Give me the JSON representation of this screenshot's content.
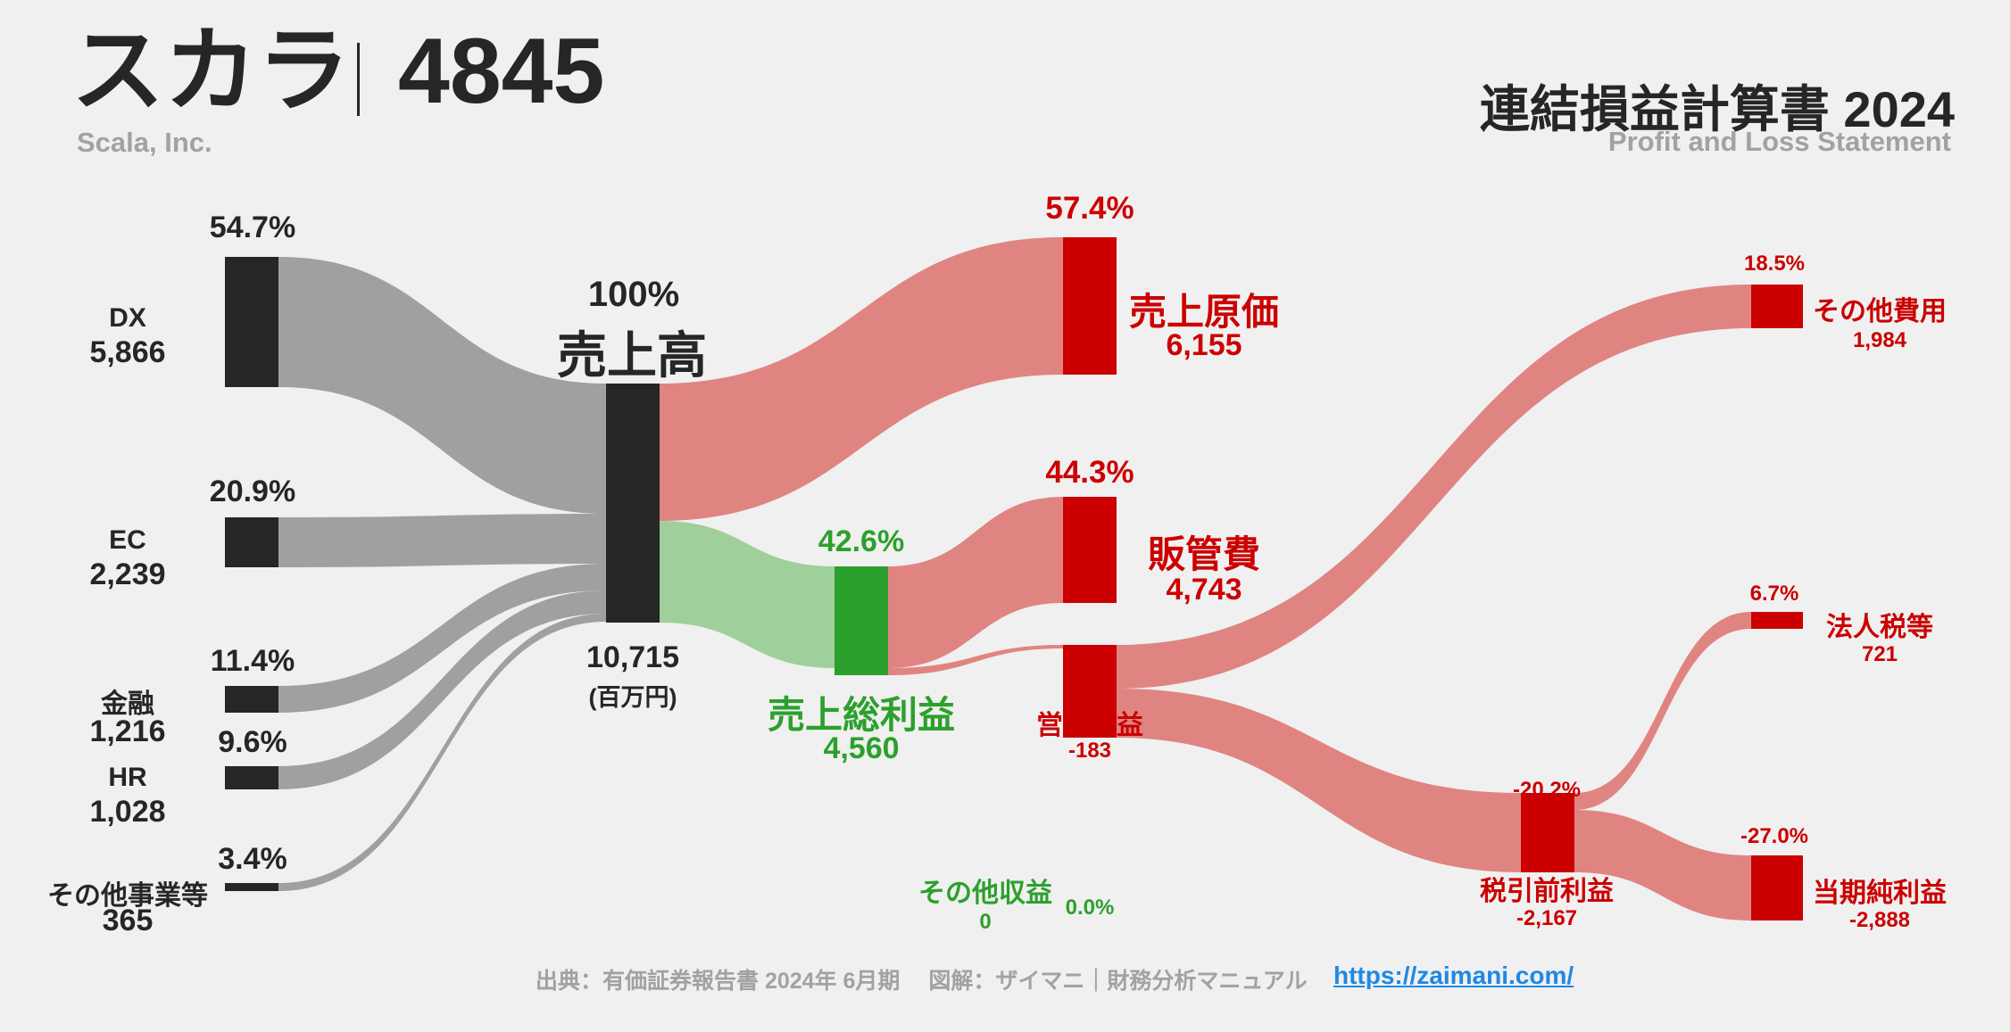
{
  "header": {
    "company": "スカラ",
    "code": "4845",
    "company_en": "Scala, Inc.",
    "statement_title": "連結損益計算書 2024",
    "statement_en": "Profit and Loss Statement"
  },
  "footer": {
    "source": "出典：有価証券報告書 2024年 6月期　 図解：ザイマニ｜財務分析マニュアル",
    "url": "https://zaimani.com/"
  },
  "unit_label": "(百万円)",
  "colors": {
    "dark": "#262626",
    "grey_flow": "#a0a0a0",
    "red": "#cc0000",
    "red_flow": "#e08482",
    "green": "#2ca02c",
    "green_flow": "#9fcf9a"
  },
  "chart_data": {
    "type": "sankey",
    "unit": "百万円",
    "nodes": [
      {
        "id": "dx",
        "name": "DX",
        "value": "5,866",
        "pct": "54.7%"
      },
      {
        "id": "ec",
        "name": "EC",
        "value": "2,239",
        "pct": "20.9%"
      },
      {
        "id": "fin",
        "name": "金融",
        "value": "1,216",
        "pct": "11.4%"
      },
      {
        "id": "hr",
        "name": "HR",
        "value": "1,028",
        "pct": "9.6%"
      },
      {
        "id": "other_seg",
        "name": "その他事業等",
        "value": "365",
        "pct": "3.4%"
      },
      {
        "id": "revenue",
        "name": "売上高",
        "value": "10,715",
        "pct": "100%"
      },
      {
        "id": "cogs",
        "name": "売上原価",
        "value": "6,155",
        "pct": "57.4%"
      },
      {
        "id": "gross",
        "name": "売上総利益",
        "value": "4,560",
        "pct": "42.6%"
      },
      {
        "id": "sga",
        "name": "販管費",
        "value": "4,743",
        "pct": "44.3%"
      },
      {
        "id": "op",
        "name": "営業利益",
        "value": "-183",
        "pct": ""
      },
      {
        "id": "other_inc",
        "name": "その他収益",
        "value": "0",
        "pct": "0.0%"
      },
      {
        "id": "other_exp",
        "name": "その他費用",
        "value": "1,984",
        "pct": "18.5%"
      },
      {
        "id": "pretax",
        "name": "税引前利益",
        "value": "-2,167",
        "pct": "-20.2%"
      },
      {
        "id": "tax",
        "name": "法人税等",
        "value": "721",
        "pct": "6.7%"
      },
      {
        "id": "net",
        "name": "当期純利益",
        "value": "-2,888",
        "pct": "-27.0%"
      }
    ],
    "links": [
      {
        "source": "dx",
        "target": "revenue",
        "value": 5866
      },
      {
        "source": "ec",
        "target": "revenue",
        "value": 2239
      },
      {
        "source": "fin",
        "target": "revenue",
        "value": 1216
      },
      {
        "source": "hr",
        "target": "revenue",
        "value": 1028
      },
      {
        "source": "other_seg",
        "target": "revenue",
        "value": 365
      },
      {
        "source": "revenue",
        "target": "cogs",
        "value": 6155
      },
      {
        "source": "revenue",
        "target": "gross",
        "value": 4560
      },
      {
        "source": "gross",
        "target": "sga",
        "value": 4560
      },
      {
        "source": "gross",
        "target": "op",
        "value": 183
      },
      {
        "source": "op",
        "target": "other_exp",
        "value": 1984
      },
      {
        "source": "op",
        "target": "pretax",
        "value": 2167
      },
      {
        "source": "pretax",
        "target": "tax",
        "value": 721
      },
      {
        "source": "pretax",
        "target": "net",
        "value": 2888
      }
    ]
  }
}
